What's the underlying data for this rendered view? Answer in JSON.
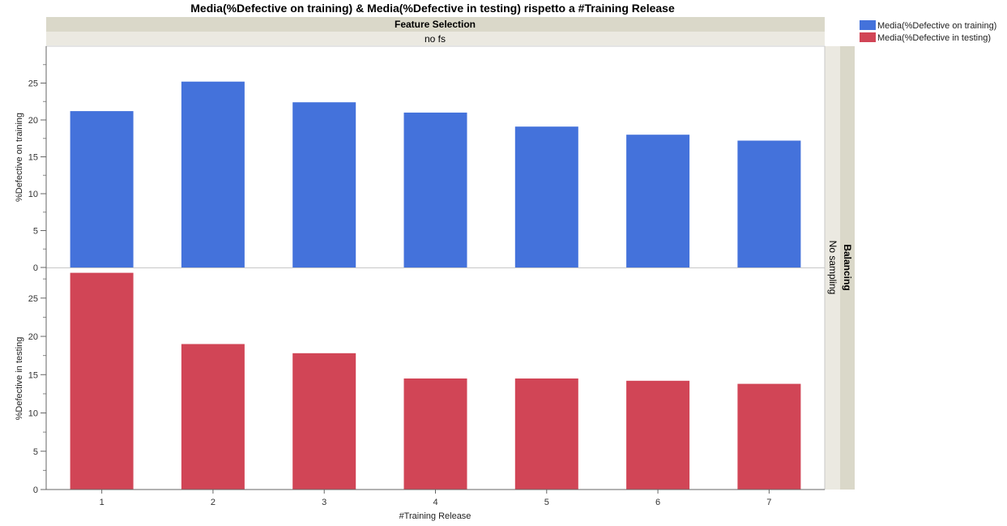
{
  "title": "Media(%Defective on training) & Media(%Defective in testing) rispetto a #Training Release",
  "column_header": {
    "group_label": "Feature Selection",
    "level_label": "no fs"
  },
  "row_header": {
    "group_label": "Balancing",
    "level_label": "No sampling"
  },
  "legend": [
    {
      "label": "Media(%Defective on training)",
      "color": "#4472DB"
    },
    {
      "label": "Media(%Defective in testing)",
      "color": "#D14556"
    }
  ],
  "chart_data": {
    "type": "bar",
    "title": "Media(%Defective on training) & Media(%Defective in testing) rispetto a #Training Release",
    "xlabel": "#Training Release",
    "categories": [
      "1",
      "2",
      "3",
      "4",
      "5",
      "6",
      "7"
    ],
    "panels": [
      {
        "ylabel": "%Defective on training",
        "ylim": [
          0,
          30
        ],
        "yticks": [
          "0",
          "5",
          "10",
          "15",
          "20",
          "25"
        ],
        "series": [
          {
            "name": "Media(%Defective on training)",
            "color": "#4472DB",
            "values": [
              21.2,
              25.2,
              22.4,
              21.0,
              19.1,
              18.0,
              17.2
            ]
          }
        ]
      },
      {
        "ylabel": "%Defective in testing",
        "ylim": [
          0,
          29
        ],
        "yticks": [
          "0",
          "5",
          "10",
          "15",
          "20",
          "25"
        ],
        "series": [
          {
            "name": "Media(%Defective in testing)",
            "color": "#D14556",
            "values": [
              28.3,
              19.0,
              17.8,
              14.5,
              14.5,
              14.2,
              13.8
            ]
          }
        ]
      }
    ],
    "legend_position": "top-right"
  }
}
